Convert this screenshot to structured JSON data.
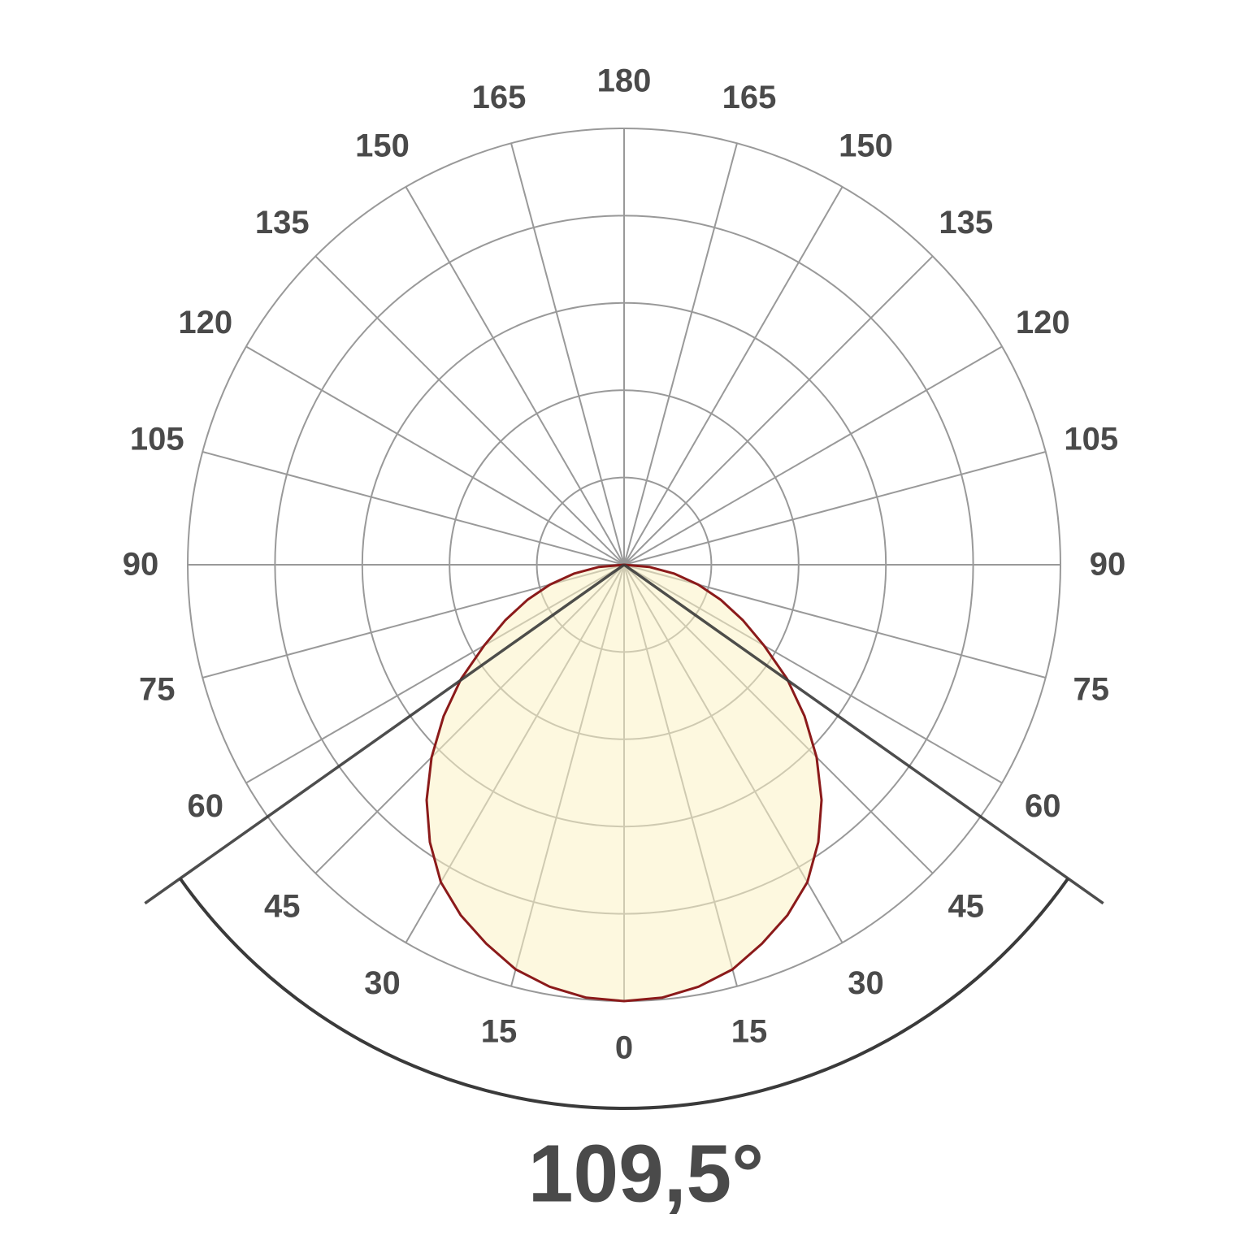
{
  "chart_data": {
    "type": "polar",
    "theta_ticks": [
      {
        "value": -165,
        "label": "165"
      },
      {
        "value": -150,
        "label": "150"
      },
      {
        "value": -135,
        "label": "135"
      },
      {
        "value": -120,
        "label": "120"
      },
      {
        "value": -105,
        "label": "105"
      },
      {
        "value": -90,
        "label": "90"
      },
      {
        "value": -75,
        "label": "75"
      },
      {
        "value": -60,
        "label": "60"
      },
      {
        "value": -45,
        "label": "45"
      },
      {
        "value": -30,
        "label": "30"
      },
      {
        "value": -15,
        "label": "15"
      },
      0,
      15,
      30,
      45,
      60,
      75,
      90,
      105,
      120,
      135,
      150,
      165,
      180
    ],
    "rlim": [
      0,
      5
    ],
    "rticks": [
      1,
      2,
      3,
      4,
      5
    ],
    "grid": true,
    "angles": [
      -90,
      -85,
      -80,
      -75,
      -70,
      -65,
      -60,
      -55,
      -50,
      -45,
      -40,
      -35,
      -30,
      -25,
      -20,
      -15,
      -10,
      -5,
      0,
      5,
      10,
      15,
      20,
      25,
      30,
      35,
      40,
      45,
      50,
      55,
      60,
      65,
      70,
      75,
      80,
      85,
      90
    ],
    "series": [
      {
        "color": "#8b1a1a",
        "fill": "#fbf3c4",
        "values": [
          0,
          0.29,
          0.58,
          0.88,
          1.18,
          1.5,
          1.85,
          2.28,
          2.7,
          3.12,
          3.52,
          3.88,
          4.2,
          4.43,
          4.62,
          4.8,
          4.91,
          4.98,
          5,
          4.98,
          4.91,
          4.8,
          4.62,
          4.43,
          4.2,
          3.88,
          3.52,
          3.12,
          2.7,
          2.28,
          1.85,
          1.5,
          1.18,
          0.88,
          0.58,
          0.29,
          0
        ]
      }
    ],
    "beam_angle": 109.5,
    "beam_label": "109,5°"
  }
}
